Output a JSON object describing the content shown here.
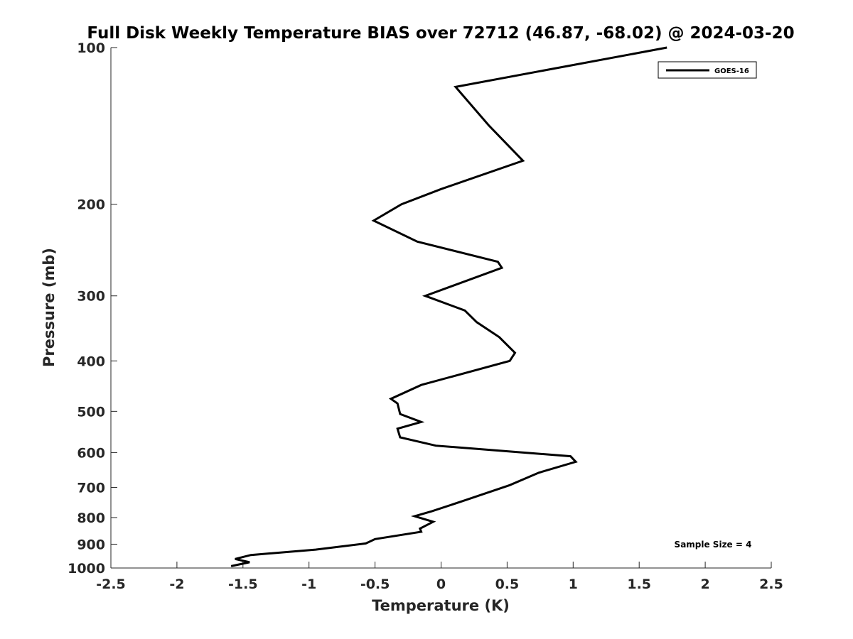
{
  "chart_data": {
    "type": "line",
    "title": "Full Disk Weekly Temperature BIAS over 72712 (46.87, -68.02) @ 2024-03-20",
    "xlabel": "Temperature (K)",
    "ylabel": "Pressure (mb)",
    "xlim": [
      -2.5,
      2.5
    ],
    "ylim": [
      1000,
      100
    ],
    "y_scale": "log",
    "y_reversed": true,
    "x_ticks": [
      -2.5,
      -2,
      -1.5,
      -1,
      -0.5,
      0,
      0.5,
      1,
      1.5,
      2,
      2.5
    ],
    "x_tick_labels": [
      "-2.5",
      "-2",
      "-1.5",
      "-1",
      "-0.5",
      "0",
      "0.5",
      "1",
      "1.5",
      "2",
      "2.5"
    ],
    "y_ticks": [
      100,
      200,
      300,
      400,
      500,
      600,
      700,
      800,
      900,
      1000
    ],
    "y_tick_labels": [
      "100",
      "200",
      "300",
      "400",
      "500",
      "600",
      "700",
      "800",
      "900",
      "1000"
    ],
    "grid": false,
    "legend_position": "top-right",
    "annotation": "Sample Size = 4",
    "series": [
      {
        "name": "GOES-16",
        "color": "#000000",
        "points": [
          [
            1.71,
            100
          ],
          [
            0.11,
            119
          ],
          [
            0.36,
            141
          ],
          [
            0.62,
            165
          ],
          [
            0.0,
            187
          ],
          [
            -0.3,
            200
          ],
          [
            -0.51,
            215
          ],
          [
            -0.18,
            236
          ],
          [
            0.43,
            258
          ],
          [
            0.46,
            265
          ],
          [
            -0.12,
            300
          ],
          [
            0.18,
            320
          ],
          [
            0.27,
            337
          ],
          [
            0.44,
            360
          ],
          [
            0.56,
            386
          ],
          [
            0.52,
            400
          ],
          [
            -0.15,
            445
          ],
          [
            -0.38,
            473
          ],
          [
            -0.33,
            483
          ],
          [
            -0.31,
            506
          ],
          [
            -0.15,
            524
          ],
          [
            -0.33,
            540
          ],
          [
            -0.31,
            561
          ],
          [
            -0.04,
            582
          ],
          [
            0.98,
            610
          ],
          [
            1.02,
            625
          ],
          [
            0.74,
            656
          ],
          [
            0.52,
            693
          ],
          [
            0.19,
            740
          ],
          [
            -0.07,
            778
          ],
          [
            -0.2,
            795
          ],
          [
            -0.06,
            815
          ],
          [
            -0.16,
            840
          ],
          [
            -0.15,
            852
          ],
          [
            -0.5,
            880
          ],
          [
            -0.57,
            897
          ],
          [
            -0.95,
            922
          ],
          [
            -1.44,
            944
          ],
          [
            -1.56,
            961
          ],
          [
            -1.45,
            975
          ],
          [
            -1.59,
            992
          ]
        ]
      }
    ]
  }
}
